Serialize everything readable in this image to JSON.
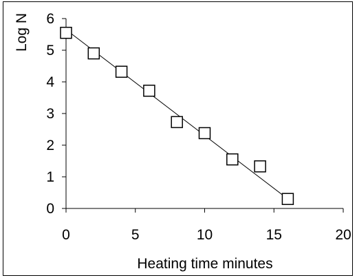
{
  "chart_data": {
    "type": "scatter",
    "title": "",
    "xlabel": "Heating time minutes",
    "ylabel": "Log N",
    "xlim": [
      0,
      20
    ],
    "ylim": [
      0,
      6
    ],
    "xticks": [
      0,
      5,
      10,
      15,
      20
    ],
    "yticks": [
      0,
      1,
      2,
      3,
      4,
      5,
      6
    ],
    "grid": false,
    "series": [
      {
        "marker": "open-square",
        "x": [
          0,
          2,
          4,
          6,
          8,
          10,
          12,
          14,
          16
        ],
        "y": [
          5.55,
          4.9,
          4.32,
          3.72,
          2.73,
          2.38,
          1.55,
          1.33,
          0.3
        ]
      }
    ],
    "trendline": {
      "type": "linear",
      "x": [
        0,
        16
      ],
      "y": [
        5.65,
        0.3
      ]
    },
    "colors": {
      "marker_stroke": "#000000",
      "line": "#000000"
    }
  }
}
